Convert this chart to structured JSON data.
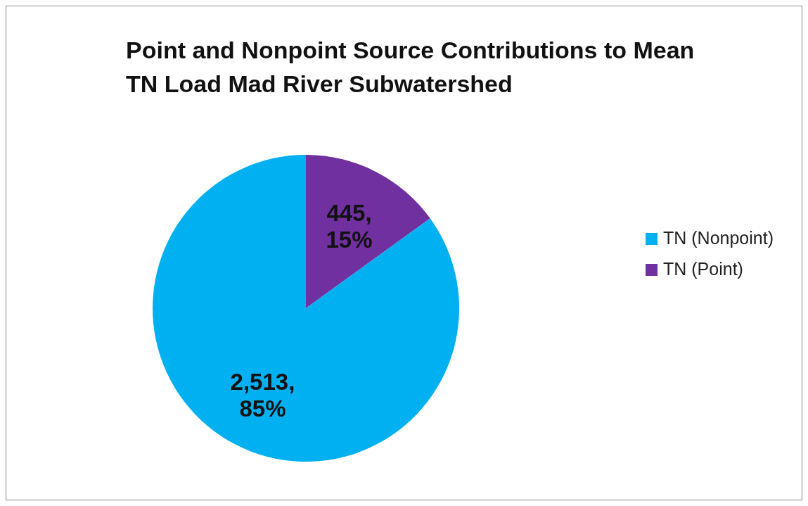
{
  "chart_data": {
    "type": "pie",
    "title": "Point and Nonpoint Source Contributions to Mean TN Load Mad River Subwatershed",
    "categories": [
      "TN (Point)",
      "TN (Nonpoint)"
    ],
    "values": [
      445,
      2513
    ],
    "colors": [
      "#7030a0",
      "#00b0f0"
    ],
    "value_labels": [
      "445, 15%",
      "2,513, 85%"
    ],
    "legend": "right"
  }
}
